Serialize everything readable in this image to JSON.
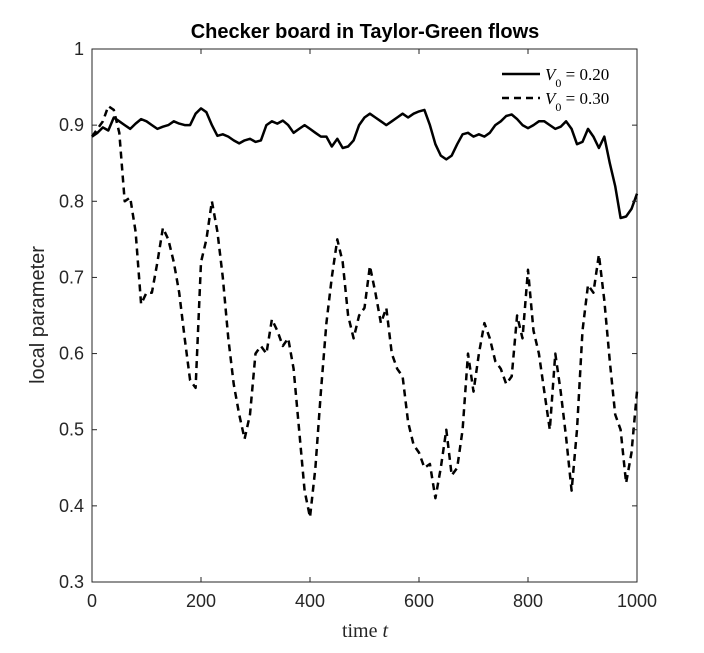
{
  "chart_data": {
    "type": "line",
    "title": "Checker board in Taylor-Green flows",
    "xlabel": "time t",
    "ylabel": "local parameter",
    "xlim": [
      0,
      1000
    ],
    "ylim": [
      0.3,
      1.0
    ],
    "xticks": [
      0,
      200,
      400,
      600,
      800,
      1000
    ],
    "yticks": [
      0.3,
      0.4,
      0.5,
      0.6,
      0.7,
      0.8,
      0.9,
      1.0
    ],
    "xtick_labels": [
      "0",
      "200",
      "400",
      "600",
      "800",
      "1000"
    ],
    "ytick_labels": [
      "0.3",
      "0.4",
      "0.5",
      "0.6",
      "0.7",
      "0.8",
      "0.9",
      "1"
    ],
    "grid": false,
    "legend_position": "top-right",
    "series": [
      {
        "name": "V0 = 0.20",
        "style": "solid",
        "color": "#000000",
        "x": [
          0,
          10,
          20,
          30,
          40,
          50,
          60,
          70,
          80,
          90,
          100,
          110,
          120,
          130,
          140,
          150,
          160,
          170,
          180,
          190,
          200,
          210,
          220,
          230,
          240,
          250,
          260,
          270,
          280,
          290,
          300,
          310,
          320,
          330,
          340,
          350,
          360,
          370,
          380,
          390,
          400,
          410,
          420,
          430,
          440,
          450,
          460,
          470,
          480,
          490,
          500,
          510,
          520,
          530,
          540,
          550,
          560,
          570,
          580,
          590,
          600,
          610,
          620,
          630,
          640,
          650,
          660,
          670,
          680,
          690,
          700,
          710,
          720,
          730,
          740,
          750,
          760,
          770,
          780,
          790,
          800,
          810,
          820,
          830,
          840,
          850,
          860,
          870,
          880,
          890,
          900,
          910,
          920,
          930,
          940,
          950,
          960,
          970,
          980,
          990,
          1000
        ],
        "y": [
          0.885,
          0.89,
          0.897,
          0.893,
          0.91,
          0.905,
          0.9,
          0.895,
          0.902,
          0.908,
          0.905,
          0.9,
          0.895,
          0.898,
          0.9,
          0.905,
          0.902,
          0.9,
          0.9,
          0.915,
          0.922,
          0.917,
          0.9,
          0.886,
          0.888,
          0.885,
          0.88,
          0.876,
          0.88,
          0.882,
          0.878,
          0.88,
          0.9,
          0.905,
          0.902,
          0.906,
          0.9,
          0.89,
          0.895,
          0.9,
          0.895,
          0.89,
          0.885,
          0.885,
          0.872,
          0.882,
          0.87,
          0.872,
          0.88,
          0.9,
          0.91,
          0.915,
          0.91,
          0.905,
          0.9,
          0.905,
          0.91,
          0.915,
          0.91,
          0.915,
          0.918,
          0.92,
          0.9,
          0.875,
          0.86,
          0.855,
          0.86,
          0.875,
          0.888,
          0.89,
          0.885,
          0.888,
          0.885,
          0.89,
          0.9,
          0.905,
          0.912,
          0.914,
          0.908,
          0.9,
          0.896,
          0.9,
          0.905,
          0.905,
          0.9,
          0.895,
          0.898,
          0.905,
          0.895,
          0.875,
          0.878,
          0.895,
          0.885,
          0.87,
          0.885,
          0.85,
          0.82,
          0.778,
          0.78,
          0.79,
          0.81
        ]
      },
      {
        "name": "V0 = 0.30",
        "style": "dashed",
        "color": "#000000",
        "x": [
          0,
          10,
          20,
          30,
          40,
          50,
          60,
          70,
          80,
          90,
          100,
          110,
          120,
          130,
          140,
          150,
          160,
          170,
          180,
          190,
          200,
          210,
          220,
          230,
          240,
          250,
          260,
          270,
          280,
          290,
          300,
          310,
          320,
          330,
          340,
          350,
          360,
          370,
          380,
          390,
          400,
          410,
          420,
          430,
          440,
          450,
          460,
          470,
          480,
          490,
          500,
          510,
          520,
          530,
          540,
          550,
          560,
          570,
          580,
          590,
          600,
          610,
          620,
          630,
          640,
          650,
          660,
          670,
          680,
          690,
          700,
          710,
          720,
          730,
          740,
          750,
          760,
          770,
          780,
          790,
          800,
          810,
          820,
          830,
          840,
          850,
          860,
          870,
          880,
          890,
          900,
          910,
          920,
          930,
          940,
          950,
          960,
          970,
          980,
          990,
          1000
        ],
        "y": [
          0.885,
          0.895,
          0.905,
          0.925,
          0.92,
          0.89,
          0.8,
          0.805,
          0.76,
          0.665,
          0.68,
          0.68,
          0.72,
          0.765,
          0.75,
          0.72,
          0.68,
          0.62,
          0.565,
          0.555,
          0.72,
          0.75,
          0.8,
          0.76,
          0.7,
          0.62,
          0.56,
          0.52,
          0.488,
          0.52,
          0.6,
          0.61,
          0.6,
          0.645,
          0.63,
          0.61,
          0.62,
          0.58,
          0.5,
          0.42,
          0.385,
          0.45,
          0.55,
          0.64,
          0.7,
          0.75,
          0.72,
          0.65,
          0.62,
          0.65,
          0.66,
          0.715,
          0.68,
          0.64,
          0.66,
          0.6,
          0.58,
          0.57,
          0.51,
          0.48,
          0.47,
          0.45,
          0.455,
          0.41,
          0.45,
          0.5,
          0.44,
          0.45,
          0.5,
          0.6,
          0.55,
          0.6,
          0.64,
          0.62,
          0.59,
          0.58,
          0.56,
          0.57,
          0.65,
          0.62,
          0.71,
          0.63,
          0.6,
          0.55,
          0.5,
          0.6,
          0.55,
          0.49,
          0.42,
          0.5,
          0.63,
          0.69,
          0.68,
          0.73,
          0.67,
          0.59,
          0.52,
          0.5,
          0.43,
          0.47,
          0.55
        ]
      }
    ]
  }
}
